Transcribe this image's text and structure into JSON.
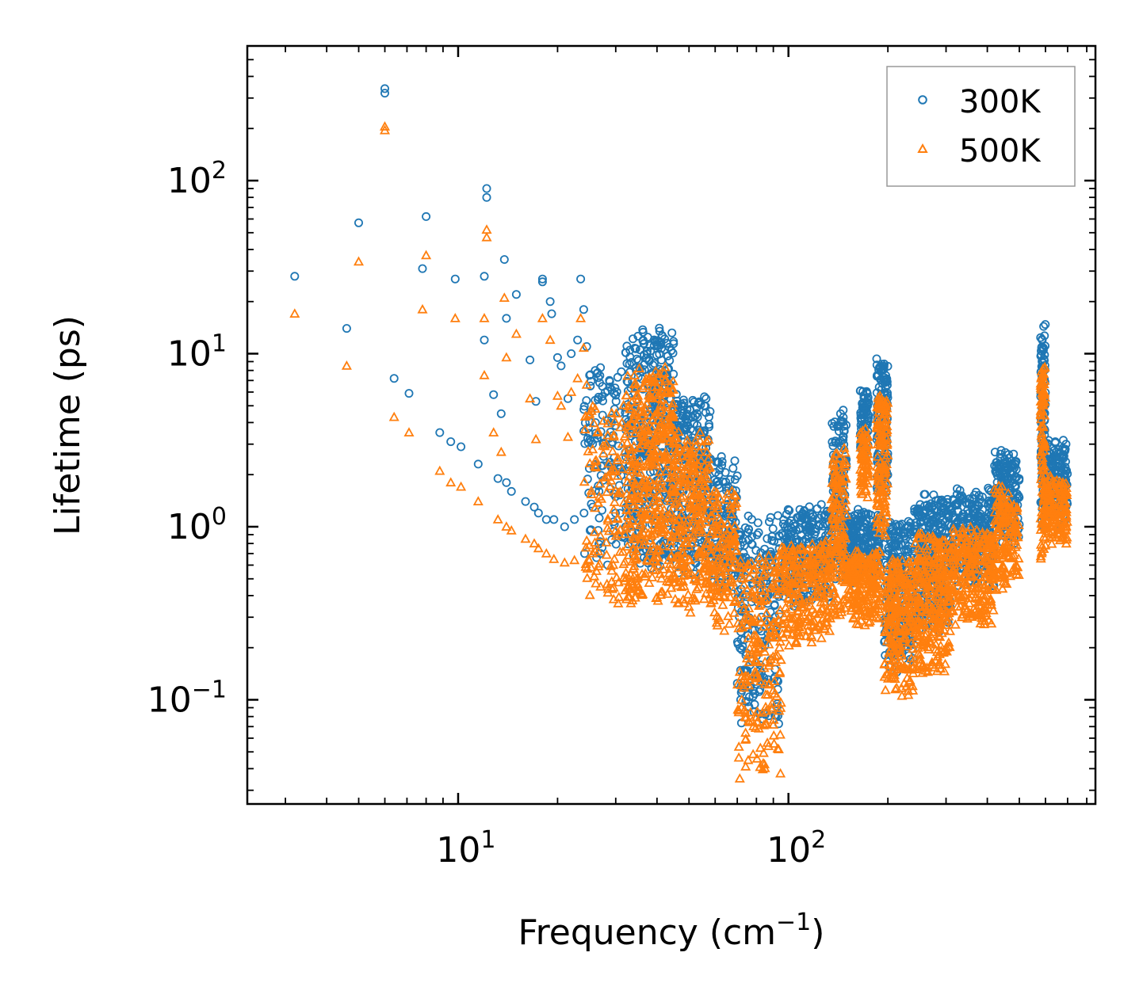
{
  "chart_data": {
    "type": "scatter",
    "xscale": "log",
    "yscale": "log",
    "xlim": [
      2.3,
      850
    ],
    "ylim": [
      0.025,
      600
    ],
    "xlabel": "Frequency (cm",
    "xlabel_sup": "−1",
    "xlabel_end": ")",
    "ylabel": "Lifetime (ps)",
    "x_ticks": [
      {
        "value": 10,
        "base": "10",
        "exp": "1"
      },
      {
        "value": 100,
        "base": "10",
        "exp": "2"
      }
    ],
    "y_ticks": [
      {
        "value": 0.1,
        "base": "10",
        "exp": "−1"
      },
      {
        "value": 1,
        "base": "10",
        "exp": "0"
      },
      {
        "value": 10,
        "base": "10",
        "exp": "1"
      },
      {
        "value": 100,
        "base": "10",
        "exp": "2"
      }
    ],
    "legend_position": "top-right",
    "series": [
      {
        "name": "300K",
        "marker": "circle",
        "color": "#1f77b4",
        "points": [
          [
            3.2,
            28
          ],
          [
            4.6,
            14
          ],
          [
            5.0,
            57
          ],
          [
            6.0,
            340
          ],
          [
            6.0,
            320
          ],
          [
            6.4,
            7.2
          ],
          [
            7.1,
            5.9
          ],
          [
            7.8,
            31
          ],
          [
            8.0,
            62
          ],
          [
            8.8,
            3.5
          ],
          [
            9.5,
            3.1
          ],
          [
            9.8,
            27
          ],
          [
            10.2,
            2.9
          ],
          [
            11.5,
            2.3
          ],
          [
            12.0,
            28
          ],
          [
            12.0,
            12
          ],
          [
            12.2,
            90
          ],
          [
            12.2,
            80
          ],
          [
            12.8,
            5.8
          ],
          [
            13.2,
            1.9
          ],
          [
            13.5,
            4.5
          ],
          [
            13.8,
            35
          ],
          [
            14.0,
            1.8
          ],
          [
            14.0,
            16
          ],
          [
            14.5,
            1.6
          ],
          [
            15.0,
            22
          ],
          [
            16.0,
            1.4
          ],
          [
            16.5,
            9.2
          ],
          [
            17.0,
            1.3
          ],
          [
            17.2,
            5.3
          ],
          [
            17.5,
            1.2
          ],
          [
            18.0,
            27
          ],
          [
            18.0,
            26
          ],
          [
            18.5,
            1.1
          ],
          [
            19.0,
            20
          ],
          [
            19.2,
            17
          ],
          [
            19.5,
            1.1
          ],
          [
            20.0,
            9.5
          ],
          [
            20.5,
            8.5
          ],
          [
            21.0,
            1.0
          ],
          [
            21.5,
            5.5
          ],
          [
            22.0,
            10
          ],
          [
            22.5,
            1.1
          ],
          [
            23.0,
            12
          ],
          [
            23.5,
            27
          ],
          [
            24.0,
            18
          ],
          [
            24.5,
            11
          ],
          [
            25.0,
            7.5
          ],
          [
            26.0,
            8
          ],
          [
            27.0,
            0.7
          ]
        ],
        "bands": [
          {
            "x": [
              24,
              32
            ],
            "y": [
              0.6,
              9
            ],
            "n": 120
          },
          {
            "x": [
              32,
              45
            ],
            "y": [
              0.55,
              14
            ],
            "n": 420
          },
          {
            "x": [
              45,
              58
            ],
            "y": [
              0.5,
              6
            ],
            "n": 260
          },
          {
            "x": [
              58,
              70
            ],
            "y": [
              0.45,
              2.6
            ],
            "n": 140
          },
          {
            "x": [
              70,
              95
            ],
            "y": [
              0.06,
              1.2
            ],
            "n": 220
          },
          {
            "x": [
              95,
              135
            ],
            "y": [
              0.35,
              1.3
            ],
            "n": 260
          },
          {
            "x": [
              135,
              150
            ],
            "y": [
              0.45,
              4.8
            ],
            "n": 140
          },
          {
            "x": [
              150,
              190
            ],
            "y": [
              0.5,
              1.2
            ],
            "n": 220
          },
          {
            "x": [
              165,
              175
            ],
            "y": [
              2.5,
              6
            ],
            "n": 80
          },
          {
            "x": [
              185,
              200
            ],
            "y": [
              1.5,
              9.7
            ],
            "n": 150
          },
          {
            "x": [
              195,
              240
            ],
            "y": [
              0.15,
              1.1
            ],
            "n": 240
          },
          {
            "x": [
              240,
              310
            ],
            "y": [
              0.25,
              1.5
            ],
            "n": 300
          },
          {
            "x": [
              310,
              420
            ],
            "y": [
              0.45,
              1.6
            ],
            "n": 260
          },
          {
            "x": [
              420,
              500
            ],
            "y": [
              0.8,
              2.8
            ],
            "n": 160
          },
          {
            "x": [
              580,
              600
            ],
            "y": [
              1.0,
              14.5
            ],
            "n": 110
          },
          {
            "x": [
              600,
              700
            ],
            "y": [
              1.1,
              3.1
            ],
            "n": 140
          }
        ]
      },
      {
        "name": "500K",
        "marker": "triangle",
        "color": "#ff7f0e",
        "points": [
          [
            3.2,
            17
          ],
          [
            4.6,
            8.5
          ],
          [
            5.0,
            34
          ],
          [
            6.0,
            205
          ],
          [
            6.0,
            195
          ],
          [
            6.4,
            4.3
          ],
          [
            7.1,
            3.5
          ],
          [
            7.8,
            18
          ],
          [
            8.0,
            37
          ],
          [
            8.8,
            2.1
          ],
          [
            9.5,
            1.8
          ],
          [
            9.8,
            16
          ],
          [
            10.2,
            1.7
          ],
          [
            11.5,
            1.4
          ],
          [
            12.0,
            16
          ],
          [
            12.0,
            7.5
          ],
          [
            12.2,
            52
          ],
          [
            12.2,
            47
          ],
          [
            12.8,
            3.5
          ],
          [
            13.2,
            1.1
          ],
          [
            13.5,
            2.7
          ],
          [
            13.8,
            21
          ],
          [
            14.0,
            1.0
          ],
          [
            14.0,
            9.5
          ],
          [
            14.5,
            0.95
          ],
          [
            15.0,
            13
          ],
          [
            16.0,
            0.85
          ],
          [
            16.5,
            5.5
          ],
          [
            17.0,
            0.8
          ],
          [
            17.2,
            3.2
          ],
          [
            17.5,
            0.75
          ],
          [
            18.0,
            16
          ],
          [
            18.5,
            0.7
          ],
          [
            19.0,
            12
          ],
          [
            19.5,
            0.65
          ],
          [
            20.0,
            5.7
          ],
          [
            20.5,
            5
          ],
          [
            21.0,
            0.62
          ],
          [
            21.5,
            3.3
          ],
          [
            22.0,
            6
          ],
          [
            22.5,
            0.64
          ],
          [
            23.0,
            7.2
          ],
          [
            23.5,
            16
          ],
          [
            24.0,
            10.8
          ],
          [
            24.5,
            6.6
          ],
          [
            25.0,
            4.5
          ],
          [
            26.0,
            4.8
          ],
          [
            27.0,
            0.45
          ]
        ],
        "bands": [
          {
            "x": [
              24,
              32
            ],
            "y": [
              0.35,
              5.5
            ],
            "n": 120
          },
          {
            "x": [
              32,
              45
            ],
            "y": [
              0.33,
              8.5
            ],
            "n": 420
          },
          {
            "x": [
              45,
              58
            ],
            "y": [
              0.3,
              3.6
            ],
            "n": 260
          },
          {
            "x": [
              58,
              70
            ],
            "y": [
              0.25,
              1.6
            ],
            "n": 140
          },
          {
            "x": [
              70,
              95
            ],
            "y": [
              0.034,
              0.7
            ],
            "n": 220
          },
          {
            "x": [
              95,
              135
            ],
            "y": [
              0.2,
              0.8
            ],
            "n": 260
          },
          {
            "x": [
              135,
              150
            ],
            "y": [
              0.27,
              2.9
            ],
            "n": 140
          },
          {
            "x": [
              150,
              190
            ],
            "y": [
              0.28,
              0.7
            ],
            "n": 220
          },
          {
            "x": [
              165,
              175
            ],
            "y": [
              1.5,
              3.6
            ],
            "n": 80
          },
          {
            "x": [
              185,
              200
            ],
            "y": [
              0.9,
              5.8
            ],
            "n": 150
          },
          {
            "x": [
              195,
              240
            ],
            "y": [
              0.1,
              0.65
            ],
            "n": 240
          },
          {
            "x": [
              240,
              310
            ],
            "y": [
              0.13,
              0.9
            ],
            "n": 300
          },
          {
            "x": [
              310,
              420
            ],
            "y": [
              0.25,
              0.95
            ],
            "n": 260
          },
          {
            "x": [
              420,
              500
            ],
            "y": [
              0.45,
              1.7
            ],
            "n": 160
          },
          {
            "x": [
              580,
              600
            ],
            "y": [
              0.6,
              9
            ],
            "n": 110
          },
          {
            "x": [
              600,
              700
            ],
            "y": [
              0.8,
              1.9
            ],
            "n": 140
          }
        ]
      }
    ]
  }
}
